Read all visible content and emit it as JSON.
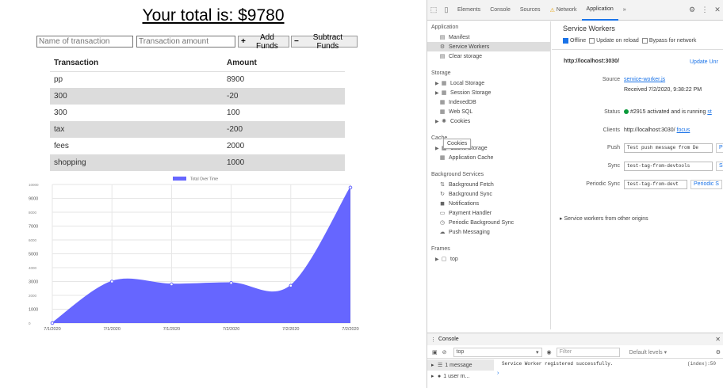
{
  "app": {
    "total_text": "Your total is: $9780",
    "name_placeholder": "Name of transaction",
    "amount_placeholder": "Transaction amount",
    "add_label": "Add Funds",
    "subtract_label": "Subtract Funds",
    "table": {
      "headers": [
        "Transaction",
        "Amount"
      ],
      "rows": [
        {
          "name": "pp",
          "amount": "8900"
        },
        {
          "name": "300",
          "amount": "-20"
        },
        {
          "name": "300",
          "amount": "100"
        },
        {
          "name": "tax",
          "amount": "-200"
        },
        {
          "name": "fees",
          "amount": "2000"
        },
        {
          "name": "shopping",
          "amount": "1000"
        }
      ]
    }
  },
  "chart_data": {
    "type": "area",
    "legend": "Total Over Time",
    "legend_position": "top",
    "color": "#6666ff",
    "x": [
      "7/1/2020",
      "7/1/2020",
      "7/1/2020",
      "7/2/2020",
      "7/2/2020",
      "7/2/2020"
    ],
    "values": [
      0,
      3000,
      2800,
      2900,
      2700,
      9780
    ],
    "ylim": [
      0,
      10000
    ],
    "yticks": [
      0,
      1000,
      2000,
      3000,
      4000,
      5000,
      6000,
      7000,
      8000,
      9000,
      10000
    ],
    "grid": true
  },
  "devtools": {
    "tabs": [
      "Elements",
      "Console",
      "Sources",
      "Network",
      "Application"
    ],
    "active_tab": "Application",
    "more_tabs": "»",
    "sidebar": {
      "application_title": "Application",
      "application_items": [
        "Manifest",
        "Service Workers",
        "Clear storage"
      ],
      "storage_title": "Storage",
      "storage_items": [
        "Local Storage",
        "Session Storage",
        "IndexedDB",
        "Web SQL",
        "Cookies"
      ],
      "cookies_tooltip": "Cookies",
      "cache_title": "Cache",
      "cache_items": [
        "Cache Storage",
        "Application Cache"
      ],
      "background_title": "Background Services",
      "background_items": [
        "Background Fetch",
        "Background Sync",
        "Notifications",
        "Payment Handler",
        "Periodic Background Sync",
        "Push Messaging"
      ],
      "frames_title": "Frames",
      "frames_items": [
        "top"
      ]
    },
    "sw": {
      "title": "Service Workers",
      "offline": "Offline",
      "update_on_reload": "Update on reload",
      "bypass": "Bypass for network",
      "url": "http://localhost:3030/",
      "update_link": "Update",
      "unregister_link": "Unr",
      "source_label": "Source",
      "source_value": "service-worker.js",
      "received": "Received 7/2/2020, 9:38:22 PM",
      "status_label": "Status",
      "status_value": "#2915 activated and is running",
      "status_link": "st",
      "clients_label": "Clients",
      "clients_value": "http://localhost:3030/",
      "clients_link": "focus",
      "push_label": "Push",
      "push_value": "Test push message from De",
      "push_btn": "P",
      "sync_label": "Sync",
      "sync_value": "test-tag-from-devtools",
      "sync_btn": "S",
      "periodic_label": "Periodic Sync",
      "periodic_value": "test-tag-from-devt",
      "periodic_btn": "Periodic S",
      "other_origins": "Service workers from other origins"
    },
    "console": {
      "tab_label": "Console",
      "context": "top",
      "filter_placeholder": "Filter",
      "levels": "Default levels",
      "messages_label": "1 message",
      "user_label": "1 user m...",
      "message": "Service Worker registered successfully.",
      "source": "(index):50"
    }
  }
}
